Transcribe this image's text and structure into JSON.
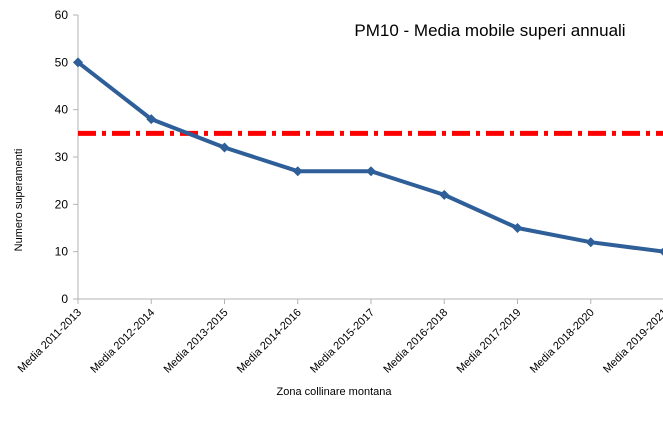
{
  "chart_data": {
    "type": "line",
    "title": "PM10 - Media mobile superi annuali",
    "x_label": "Zona collinare montana",
    "y_label": "Numero superamenti",
    "categories": [
      "Media 2011-2013",
      "Media 2012-2014",
      "Media 2013-2015",
      "Media 2014-2016",
      "Media 2015-2017",
      "Media 2016-2018",
      "Media 2017-2019",
      "Media 2018-2020",
      "Media 2019-2021"
    ],
    "series": [
      {
        "color": "#2e5f99",
        "values": [
          50,
          38,
          32,
          27,
          27,
          22,
          15,
          12,
          10
        ]
      }
    ],
    "reference_line": {
      "value": 35,
      "color": "#ff0000"
    },
    "ylim": [
      0,
      60
    ],
    "yticks": [
      0,
      10,
      20,
      30,
      40,
      50,
      60
    ]
  }
}
